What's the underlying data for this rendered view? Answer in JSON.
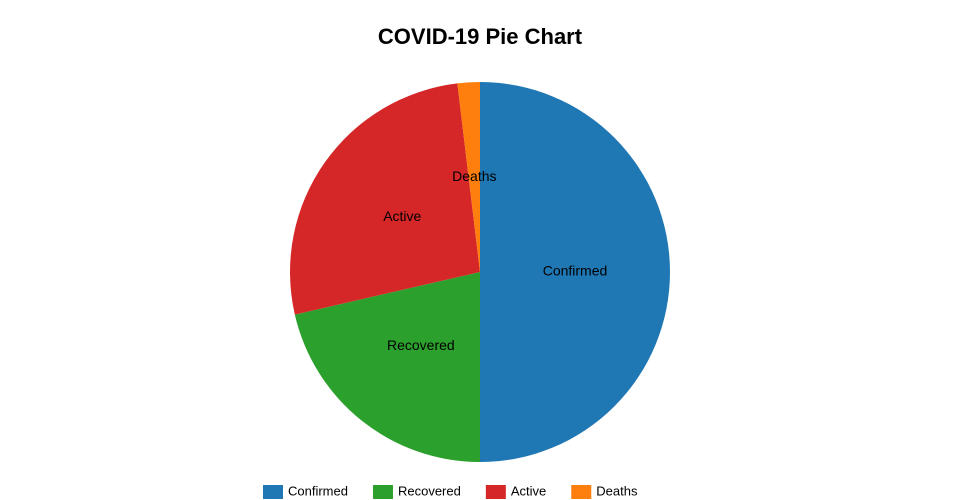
{
  "chart_data": {
    "type": "pie",
    "title": "COVID-19 Pie Chart",
    "categories": [
      "Confirmed",
      "Recovered",
      "Active",
      "Deaths"
    ],
    "values": [
      50,
      21.4,
      26.7,
      1.9
    ],
    "colors": [
      "#1f77b4",
      "#2ca02c",
      "#d62728",
      "#ff7f0e"
    ]
  }
}
